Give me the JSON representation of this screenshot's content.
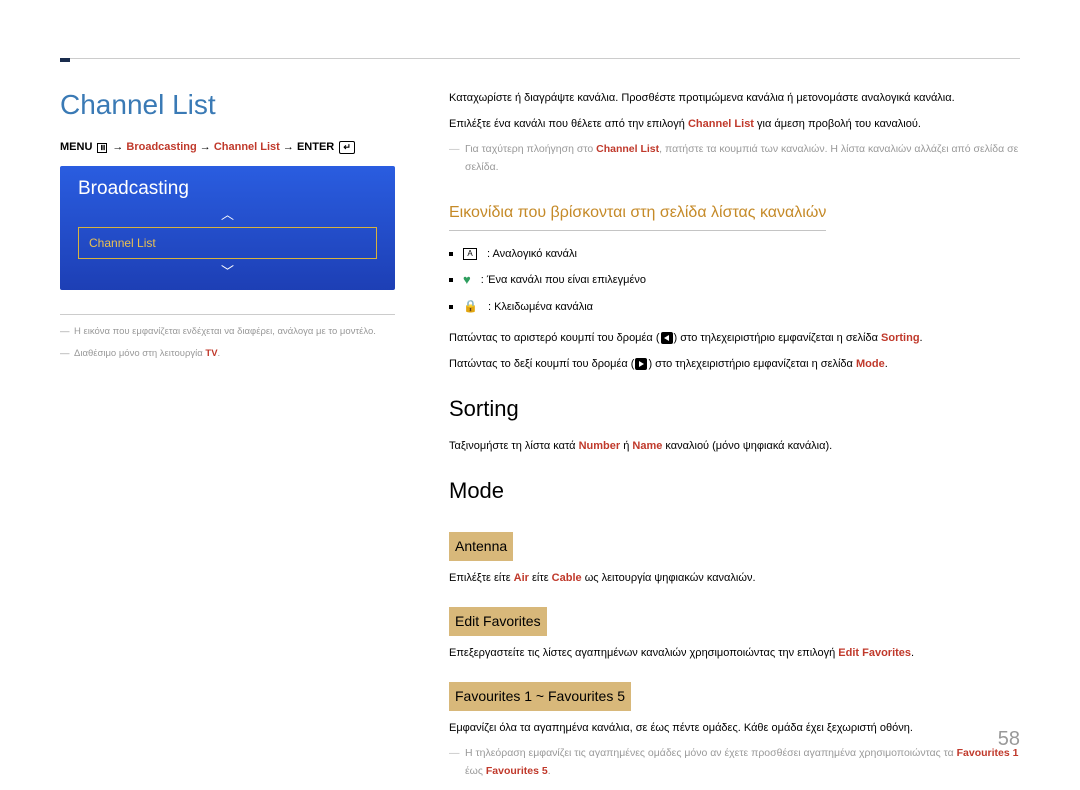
{
  "page": {
    "title": "Channel List",
    "page_number": "58"
  },
  "nav": {
    "menu": "MENU",
    "broadcasting": "Broadcasting",
    "channel_list": "Channel List",
    "enter": "ENTER"
  },
  "ui_preview": {
    "title": "Broadcasting",
    "selected": "Channel List"
  },
  "footnotes": {
    "fn1": "Η εικόνα που εμφανίζεται ενδέχεται να διαφέρει, ανάλογα με το μοντέλο.",
    "fn2_a": "Διαθέσιμο μόνο στη λειτουργία ",
    "fn2_hl": "TV"
  },
  "intro": {
    "p1": "Καταχωρίστε ή διαγράψτε κανάλια. Προσθέστε προτιμώμενα κανάλια ή μετονομάστε αναλογικά κανάλια.",
    "p2_a": "Επιλέξτε ένα κανάλι που θέλετε από την επιλογή ",
    "p2_hl": "Channel List",
    "p2_b": " για άμεση προβολή του καναλιού.",
    "note_a": "Για ταχύτερη πλοήγηση στο ",
    "note_hl": "Channel List",
    "note_b": ", πατήστε τα κουμπιά των καναλιών. Η λίστα καναλιών αλλάζει από σελίδα σε σελίδα."
  },
  "icons_section": {
    "heading": "Εικονίδια που βρίσκονται στη σελίδα λίστας καναλιών",
    "i1_label": "A",
    "i1_desc": ": Αναλογικό κανάλι",
    "i2_desc": ": Ένα κανάλι που είναι επιλεγμένο",
    "i3_desc": ": Κλειδωμένα κανάλια"
  },
  "nav_help": {
    "p1_a": "Πατώντας το αριστερό κουμπί του δρομέα (",
    "p1_b": ") στο τηλεχειριστήριο εμφανίζεται η σελίδα ",
    "p1_hl": "Sorting",
    "p2_a": "Πατώντας το δεξί κουμπί του δρομέα (",
    "p2_b": ") στο τηλεχειριστήριο εμφανίζεται η σελίδα ",
    "p2_hl": "Mode"
  },
  "sorting": {
    "heading": "Sorting",
    "p_a": "Ταξινομήστε τη λίστα κατά ",
    "p_hl1": "Number",
    "p_mid": " ή ",
    "p_hl2": "Name",
    "p_b": " καναλιού (μόνο ψηφιακά κανάλια)."
  },
  "mode": {
    "heading": "Mode",
    "antenna": {
      "title": "Antenna",
      "p_a": "Επιλέξτε είτε ",
      "p_hl1": "Air",
      "p_mid": " είτε ",
      "p_hl2": "Cable",
      "p_b": " ως λειτουργία ψηφιακών καναλιών."
    },
    "edit_fav": {
      "title": "Edit Favorites",
      "p_a": "Επεξεργαστείτε τις λίστες αγαπημένων καναλιών χρησιμοποιώντας την επιλογή ",
      "p_hl": "Edit Favorites"
    },
    "fav15": {
      "title": "Favourites 1 ~ Favourites 5",
      "p": "Εμφανίζει όλα τα αγαπημένα κανάλια, σε έως πέντε ομάδες. Κάθε ομάδα έχει ξεχωριστή οθόνη.",
      "note_a": "Η τηλεόραση εμφανίζει τις αγαπημένες ομάδες μόνο αν έχετε προσθέσει αγαπημένα χρησιμοποιώντας τα ",
      "note_hl1": "Favourites 1",
      "note_mid": "  έως  ",
      "note_hl2": "Favourites 5"
    }
  },
  "colors": {
    "title": "#3a7ab5",
    "highlight": "#c0392b",
    "section": "#c58a28",
    "sub_bg": "#d8b87a",
    "preview_grad_top": "#2a5de0",
    "preview_grad_bot": "#1d3fb5",
    "muted": "#999999"
  }
}
